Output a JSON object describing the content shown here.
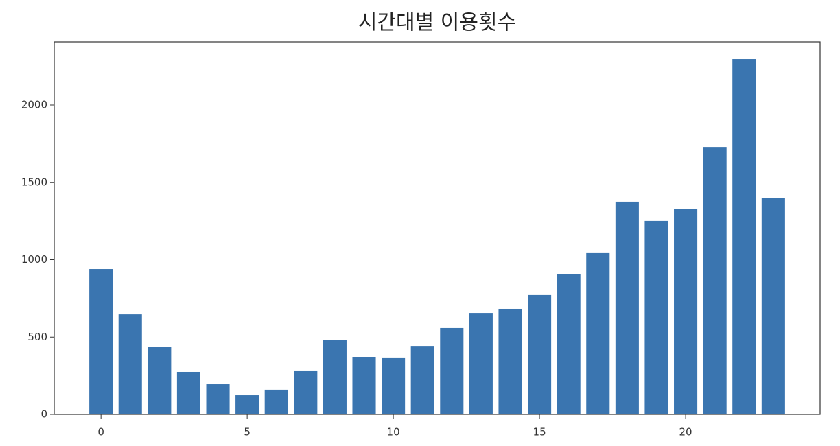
{
  "chart_data": {
    "type": "bar",
    "title": "시간대별 이용횟수",
    "x": [
      0,
      1,
      2,
      3,
      4,
      5,
      6,
      7,
      8,
      9,
      10,
      11,
      12,
      13,
      14,
      15,
      16,
      17,
      18,
      19,
      20,
      21,
      22,
      23
    ],
    "values": [
      940,
      647,
      435,
      275,
      195,
      124,
      160,
      284,
      479,
      372,
      364,
      443,
      559,
      656,
      683,
      772,
      905,
      1047,
      1375,
      1251,
      1330,
      1729,
      2297,
      1401
    ],
    "color": "#3a75b0",
    "xlim": [
      -1.6,
      24.6
    ],
    "xticks": [
      0,
      5,
      10,
      15,
      20
    ],
    "ylim": [
      0,
      2408
    ],
    "yticks": [
      0,
      500,
      1000,
      1500,
      2000
    ],
    "grid": false
  }
}
